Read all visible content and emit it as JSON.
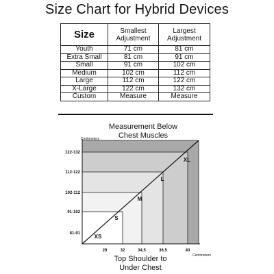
{
  "title": "Size Chart for Hybrid Devices",
  "table": {
    "headers": {
      "size": "Size",
      "smallest_line1": "Smallest",
      "smallest_line2": "Adjustment",
      "largest_line1": "Largest",
      "largest_line2": "Adjustment"
    },
    "rows": [
      {
        "size": "Youth",
        "smallest": "71 cm",
        "largest": "81 cm"
      },
      {
        "size": "Extra Small",
        "smallest": "81 cm",
        "largest": "91 cm"
      },
      {
        "size": "Small",
        "smallest": "91 cm",
        "largest": "102 cm"
      },
      {
        "size": "Medium",
        "smallest": "102 cm",
        "largest": "112 cm"
      },
      {
        "size": "Large",
        "smallest": "112 cm",
        "largest": "122 cm"
      },
      {
        "size": "X-Large",
        "smallest": "122 cm",
        "largest": "132 cm"
      },
      {
        "size": "Custom",
        "smallest": "Measure",
        "largest": "Measure"
      }
    ]
  },
  "chart_data": {
    "type": "area",
    "title_line1": "Measurement Below",
    "title_line2": "Chest Muscles",
    "y_unit": "Centimeters",
    "x_unit": "Centimeters",
    "xlabel_line1": "Top Shoulder to",
    "xlabel_line2": "Under Chest",
    "x_ticks": [
      "29",
      "32",
      "34,5",
      "36,5",
      "40"
    ],
    "y_ticks": [
      "81-91",
      "91-102",
      "102-112",
      "112-122",
      "122-132"
    ],
    "regions": [
      {
        "label": "XS",
        "x_max": "29",
        "y_max": "81-91",
        "color": "#ffffff"
      },
      {
        "label": "S",
        "x_max": "32",
        "y_max": "91-102",
        "color": "#f2f2f2"
      },
      {
        "label": "M",
        "x_max": "34,5",
        "y_max": "102-112",
        "color": "#e4e4e4"
      },
      {
        "label": "L",
        "x_max": "36,5",
        "y_max": "112-122",
        "color": "#cdcdcd"
      },
      {
        "label": "XL",
        "x_max": "40",
        "y_max": "122-132",
        "color": "#a9a9a9"
      }
    ]
  }
}
